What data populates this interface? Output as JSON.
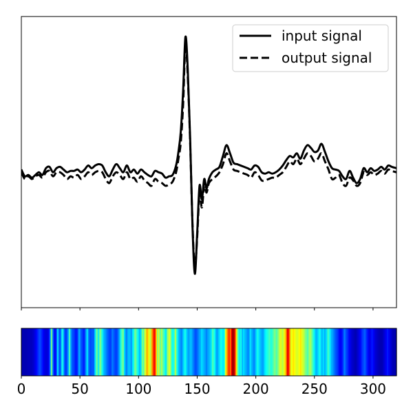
{
  "chart_data": [
    {
      "type": "line",
      "title": "",
      "xlabel": "",
      "ylabel": "",
      "xlim": [
        0,
        320
      ],
      "ylim": [
        -1.0,
        1.15
      ],
      "grid": false,
      "legend_position": "top-right",
      "series": [
        {
          "name": "input signal",
          "linestyle": "solid",
          "color": "#000000",
          "x": [
            0,
            3,
            6,
            9,
            12,
            15,
            18,
            21,
            24,
            27,
            30,
            33,
            36,
            39,
            42,
            45,
            48,
            51,
            54,
            57,
            60,
            63,
            66,
            69,
            72,
            75,
            78,
            81,
            84,
            87,
            90,
            93,
            96,
            99,
            102,
            105,
            108,
            111,
            114,
            117,
            120,
            123,
            126,
            129,
            132,
            134,
            136,
            138,
            140,
            142,
            144,
            146,
            148,
            150,
            152,
            154,
            156,
            158,
            160,
            163,
            166,
            169,
            172,
            175,
            178,
            181,
            184,
            187,
            190,
            193,
            196,
            199,
            202,
            205,
            208,
            211,
            214,
            217,
            220,
            223,
            226,
            229,
            232,
            235,
            238,
            241,
            244,
            247,
            250,
            253,
            256,
            259,
            262,
            265,
            268,
            271,
            274,
            277,
            280,
            283,
            286,
            289,
            292,
            295,
            298,
            301,
            304,
            307,
            310,
            313,
            316,
            320
          ],
          "y": [
            0.02,
            -0.03,
            -0.02,
            -0.04,
            -0.02,
            0.0,
            -0.02,
            0.03,
            0.04,
            0.0,
            0.03,
            0.04,
            0.02,
            0.0,
            0.01,
            0.01,
            0.02,
            0.0,
            0.02,
            0.05,
            0.03,
            0.05,
            0.06,
            0.05,
            0.0,
            -0.03,
            0.02,
            0.06,
            0.03,
            0.0,
            0.05,
            0.0,
            0.02,
            -0.01,
            0.02,
            0.0,
            -0.02,
            -0.03,
            0.01,
            0.0,
            -0.01,
            -0.04,
            -0.03,
            -0.02,
            0.05,
            0.15,
            0.3,
            0.6,
            1.0,
            0.75,
            0.25,
            -0.4,
            -0.75,
            -0.45,
            -0.1,
            -0.2,
            -0.05,
            -0.12,
            -0.05,
            0.0,
            0.02,
            0.04,
            0.12,
            0.2,
            0.14,
            0.07,
            0.06,
            0.05,
            0.04,
            0.03,
            0.02,
            0.05,
            0.04,
            0.0,
            -0.01,
            0.0,
            -0.01,
            0.0,
            0.02,
            0.05,
            0.09,
            0.12,
            0.11,
            0.14,
            0.1,
            0.16,
            0.2,
            0.18,
            0.15,
            0.16,
            0.21,
            0.15,
            0.08,
            0.03,
            0.02,
            0.01,
            -0.03,
            -0.05,
            0.01,
            -0.04,
            -0.08,
            -0.05,
            0.03,
            0.0,
            0.03,
            0.01,
            0.02,
            0.04,
            0.02,
            0.05,
            0.04,
            0.03
          ]
        },
        {
          "name": "output signal",
          "linestyle": "dashed",
          "color": "#000000",
          "x": [
            0,
            3,
            6,
            9,
            12,
            15,
            18,
            21,
            24,
            27,
            30,
            33,
            36,
            39,
            42,
            45,
            48,
            51,
            54,
            57,
            60,
            63,
            66,
            69,
            72,
            75,
            78,
            81,
            84,
            87,
            90,
            93,
            96,
            99,
            102,
            105,
            108,
            111,
            114,
            117,
            120,
            123,
            126,
            129,
            132,
            134,
            136,
            138,
            140,
            142,
            144,
            146,
            148,
            150,
            152,
            154,
            156,
            158,
            160,
            163,
            166,
            169,
            172,
            175,
            178,
            181,
            184,
            187,
            190,
            193,
            196,
            199,
            202,
            205,
            208,
            211,
            214,
            217,
            220,
            223,
            226,
            229,
            232,
            235,
            238,
            241,
            244,
            247,
            250,
            253,
            256,
            259,
            262,
            265,
            268,
            271,
            274,
            277,
            280,
            283,
            286,
            289,
            292,
            295,
            298,
            301,
            304,
            307,
            310,
            313,
            316,
            320
          ],
          "y": [
            0.0,
            -0.05,
            -0.03,
            -0.05,
            -0.03,
            -0.02,
            -0.04,
            0.0,
            0.01,
            -0.03,
            0.0,
            0.0,
            -0.02,
            -0.05,
            -0.03,
            -0.04,
            -0.02,
            -0.05,
            -0.03,
            0.0,
            -0.02,
            0.0,
            0.01,
            0.0,
            -0.05,
            -0.08,
            -0.03,
            0.0,
            -0.02,
            -0.05,
            0.0,
            -0.05,
            -0.04,
            -0.07,
            -0.03,
            -0.06,
            -0.08,
            -0.1,
            -0.05,
            -0.07,
            -0.08,
            -0.1,
            -0.09,
            -0.07,
            0.0,
            0.1,
            0.22,
            0.5,
            0.95,
            0.7,
            0.22,
            -0.38,
            -0.7,
            -0.48,
            -0.15,
            -0.26,
            -0.1,
            -0.15,
            -0.08,
            -0.05,
            -0.03,
            0.0,
            0.06,
            0.14,
            0.08,
            0.02,
            0.01,
            0.0,
            -0.01,
            -0.02,
            -0.04,
            0.0,
            -0.02,
            -0.06,
            -0.06,
            -0.05,
            -0.04,
            -0.04,
            -0.02,
            0.0,
            0.04,
            0.08,
            0.06,
            0.1,
            0.06,
            0.1,
            0.14,
            0.12,
            0.08,
            0.1,
            0.14,
            0.08,
            0.02,
            -0.05,
            -0.04,
            -0.02,
            -0.08,
            -0.1,
            -0.04,
            -0.06,
            -0.1,
            -0.08,
            0.0,
            -0.02,
            0.0,
            -0.02,
            -0.01,
            0.01,
            -0.01,
            0.02,
            0.01,
            0.0
          ]
        }
      ]
    },
    {
      "type": "heatmap",
      "title": "",
      "xlabel": "",
      "xlim": [
        0,
        320
      ],
      "x_ticks": [
        0,
        50,
        100,
        150,
        200,
        250,
        300
      ],
      "x_tick_labels": [
        "0",
        "50",
        "100",
        "150",
        "200",
        "250",
        "300"
      ],
      "colormap": "jet",
      "values": [
        0.05,
        0.05,
        0.05,
        0.05,
        0.05,
        0.06,
        0.06,
        0.06,
        0.06,
        0.07,
        0.08,
        0.1,
        0.12,
        0.15,
        0.18,
        0.2,
        0.18,
        0.15,
        0.12,
        0.1,
        0.09,
        0.09,
        0.1,
        0.15,
        0.3,
        0.5,
        0.25,
        0.15,
        0.12,
        0.2,
        0.35,
        0.25,
        0.18,
        0.3,
        0.4,
        0.3,
        0.2,
        0.18,
        0.22,
        0.3,
        0.45,
        0.3,
        0.22,
        0.2,
        0.18,
        0.15,
        0.15,
        0.2,
        0.3,
        0.25,
        0.2,
        0.18,
        0.15,
        0.2,
        0.3,
        0.35,
        0.25,
        0.2,
        0.2,
        0.22,
        0.2,
        0.3,
        0.4,
        0.5,
        0.35,
        0.45,
        0.5,
        0.42,
        0.35,
        0.3,
        0.28,
        0.25,
        0.22,
        0.2,
        0.18,
        0.2,
        0.25,
        0.22,
        0.2,
        0.18,
        0.2,
        0.25,
        0.3,
        0.4,
        0.45,
        0.5,
        0.35,
        0.28,
        0.25,
        0.3,
        0.32,
        0.3,
        0.28,
        0.35,
        0.4,
        0.5,
        0.45,
        0.4,
        0.35,
        0.3,
        0.35,
        0.5,
        0.45,
        0.55,
        0.6,
        0.72,
        0.65,
        0.6,
        0.55,
        0.7,
        0.78,
        0.88,
        0.82,
        0.65,
        0.5,
        0.6,
        0.45,
        0.55,
        0.5,
        0.45,
        0.4,
        0.35,
        0.5,
        0.55,
        0.6,
        0.5,
        0.4,
        0.38,
        0.45,
        0.55,
        0.42,
        0.35,
        0.3,
        0.28,
        0.25,
        0.3,
        0.35,
        0.4,
        0.35,
        0.3,
        0.28,
        0.3,
        0.32,
        0.28,
        0.25,
        0.22,
        0.2,
        0.22,
        0.25,
        0.28,
        0.3,
        0.35,
        0.32,
        0.3,
        0.28,
        0.25,
        0.28,
        0.3,
        0.32,
        0.35,
        0.45,
        0.42,
        0.38,
        0.3,
        0.28,
        0.32,
        0.35,
        0.4,
        0.38,
        0.35,
        0.4,
        0.6,
        0.7,
        0.78,
        0.85,
        0.75,
        0.88,
        0.98,
        0.95,
        0.85,
        0.65,
        0.5,
        0.4,
        0.35,
        0.4,
        0.3,
        0.35,
        0.32,
        0.3,
        0.28,
        0.25,
        0.3,
        0.35,
        0.3,
        0.28,
        0.25,
        0.3,
        0.35,
        0.4,
        0.35,
        0.32,
        0.3,
        0.28,
        0.3,
        0.35,
        0.38,
        0.4,
        0.42,
        0.45,
        0.4,
        0.42,
        0.45,
        0.5,
        0.48,
        0.45,
        0.5,
        0.55,
        0.6,
        0.58,
        0.55,
        0.6,
        0.65,
        0.75,
        0.9,
        0.85,
        0.72,
        0.6,
        0.62,
        0.65,
        0.62,
        0.6,
        0.58,
        0.6,
        0.62,
        0.65,
        0.6,
        0.58,
        0.55,
        0.5,
        0.48,
        0.45,
        0.5,
        0.55,
        0.5,
        0.45,
        0.4,
        0.35,
        0.3,
        0.32,
        0.35,
        0.4,
        0.35,
        0.3,
        0.35,
        0.3,
        0.32,
        0.35,
        0.45,
        0.4,
        0.35,
        0.3,
        0.28,
        0.25,
        0.22,
        0.2,
        0.18,
        0.15,
        0.12,
        0.12,
        0.15,
        0.2,
        0.25,
        0.2,
        0.18,
        0.15,
        0.12,
        0.1,
        0.08,
        0.07,
        0.06,
        0.05,
        0.06,
        0.08,
        0.1,
        0.12,
        0.15,
        0.18,
        0.2,
        0.22,
        0.18,
        0.15,
        0.12,
        0.1,
        0.12,
        0.15,
        0.12,
        0.1,
        0.08,
        0.07,
        0.06,
        0.05,
        0.05,
        0.05,
        0.06,
        0.08,
        0.1,
        0.12,
        0.15,
        0.12,
        0.1,
        0.08,
        0.06,
        0.05,
        0.05,
        0.05
      ]
    }
  ],
  "legend": {
    "entries": [
      {
        "label": "input signal",
        "linestyle": "solid"
      },
      {
        "label": "output signal",
        "linestyle": "dashed"
      }
    ]
  }
}
